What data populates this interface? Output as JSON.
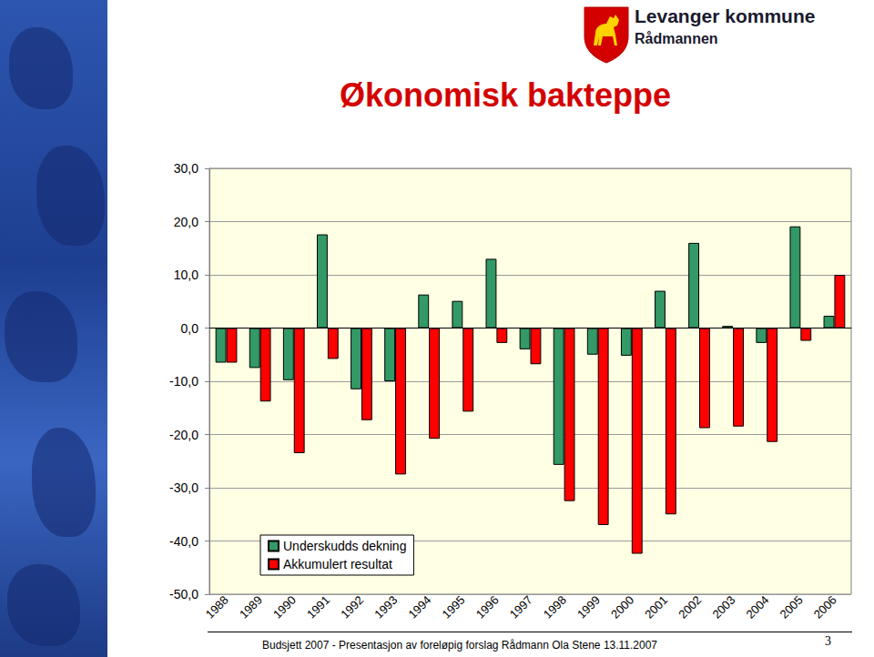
{
  "chart_data": {
    "type": "bar",
    "title": "Økonomisk bakteppe",
    "categories": [
      "1988",
      "1989",
      "1990",
      "1991",
      "1992",
      "1993",
      "1994",
      "1995",
      "1996",
      "1997",
      "1998",
      "1999",
      "2000",
      "2001",
      "2002",
      "2003",
      "2004",
      "2005",
      "2006"
    ],
    "series": [
      {
        "name": "Underskudds dekning",
        "color": "#339966",
        "values": [
          -6.5,
          -7.5,
          -9.8,
          17.6,
          -11.5,
          -10.0,
          6.3,
          5.1,
          13.0,
          -4.0,
          -25.7,
          -5.0,
          -5.2,
          7.0,
          16.0,
          0.4,
          -2.8,
          19.1,
          2.3
        ]
      },
      {
        "name": "Akkumulert resultat",
        "color": "#ff0000",
        "values": [
          -6.5,
          -13.8,
          -23.5,
          -5.8,
          -17.3,
          -27.5,
          -20.8,
          -15.7,
          -2.8,
          -6.8,
          -32.5,
          -37.0,
          -42.4,
          -35.0,
          -18.8,
          -18.5,
          -21.4,
          -2.4,
          10.0
        ]
      }
    ],
    "ylim": [
      -50,
      30
    ],
    "yticks": [
      {
        "value": -50,
        "label": "-50,0"
      },
      {
        "value": -40,
        "label": "-40,0"
      },
      {
        "value": -30,
        "label": "-30,0"
      },
      {
        "value": -20,
        "label": "-20,0"
      },
      {
        "value": -10,
        "label": "-10,0"
      },
      {
        "value": 0,
        "label": "0,0"
      },
      {
        "value": 10,
        "label": "10,0"
      },
      {
        "value": 20,
        "label": "20,0"
      },
      {
        "value": 30,
        "label": "30,0"
      }
    ],
    "grid": true,
    "legend": "lower left"
  },
  "header": {
    "organization": "Levanger kommune",
    "department": "Rådmannen"
  },
  "footer": {
    "text": "Budsjett 2007 - Presentasjon av foreløpig forslag Rådmann Ola Stene 13.11.2007",
    "page": 3
  }
}
